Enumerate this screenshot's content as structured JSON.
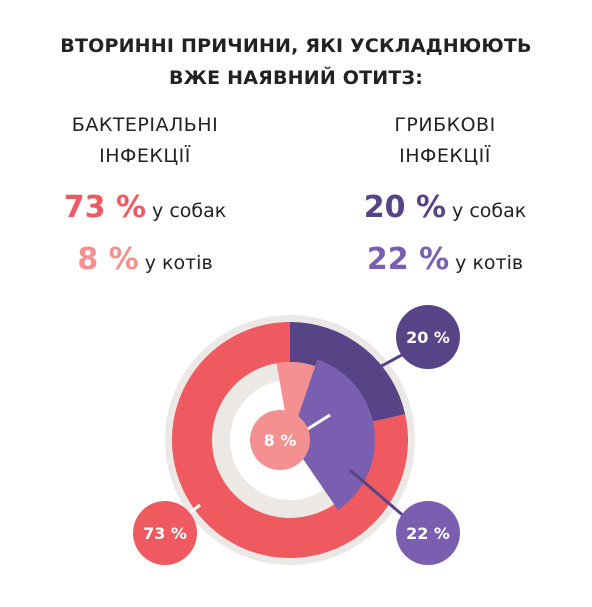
{
  "title_line1": "ВТОРИННІ ПРИЧИНИ, ЯКІ УСКЛАДНЮЮТЬ",
  "title_line2": "ВЖЕ НАЯВНИЙ ОТИТЗ:",
  "colors": {
    "background_disc": "#ece8e6",
    "bacterial_dogs": "#ee5a5f",
    "bacterial_cats": "#f59090",
    "fungal_dogs": "#574486",
    "fungal_cats": "#7a5fb0"
  },
  "chart_data": {
    "type": "pie",
    "groups": [
      {
        "label_line1": "БАКТЕРІАЛЬНІ",
        "label_line2": "ІНФЕКЦІЇ",
        "dogs": {
          "value": 73,
          "text": "73 %",
          "suffix": "у собак"
        },
        "cats": {
          "value": 8,
          "text": "8 %",
          "suffix": "у котів"
        }
      },
      {
        "label_line1": "ГРИБКОВІ",
        "label_line2": "ІНФЕКЦІЇ",
        "dogs": {
          "value": 20,
          "text": "20 %",
          "suffix": "у собак"
        },
        "cats": {
          "value": 22,
          "text": "22 %",
          "suffix": "у котів"
        }
      }
    ],
    "rings": {
      "outer": [
        "bacterial_dogs",
        "fungal_dogs"
      ],
      "inner": [
        "bacterial_cats",
        "fungal_cats"
      ]
    }
  }
}
